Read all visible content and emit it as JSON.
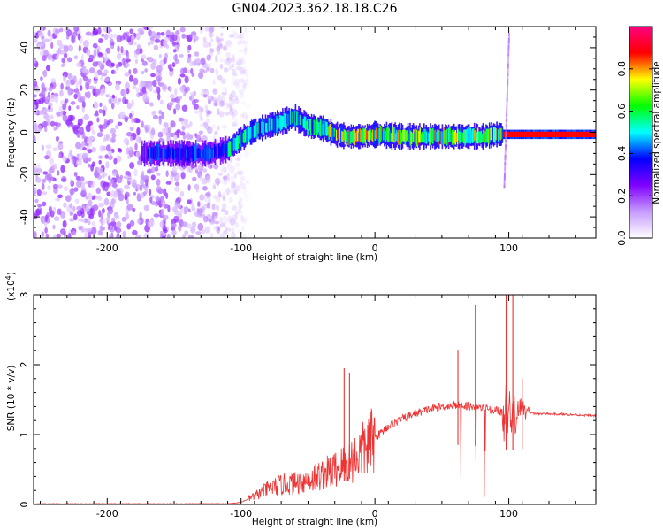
{
  "title": "GN04.2023.362.18.18.C26",
  "chart_data": [
    {
      "type": "heatmap",
      "xlabel": "Height of straight line (km)",
      "ylabel": "Frequency (Hz)",
      "xlim": [
        -255,
        165
      ],
      "ylim": [
        -50,
        50
      ],
      "x_ticks": [
        -200,
        -100,
        0,
        100
      ],
      "y_ticks": [
        -40,
        -20,
        0,
        20,
        40
      ],
      "colorbar": {
        "label": "Normalized spectral amplitude",
        "range": [
          0,
          1
        ],
        "ticks": [
          "0.0",
          "0.2",
          "0.4",
          "0.6",
          "0.8"
        ],
        "colors": [
          "#ffffff",
          "#c79bff",
          "#7f00ff",
          "#0000ff",
          "#00ffff",
          "#00ff00",
          "#ffff00",
          "#ff0000",
          "#ff0080"
        ]
      },
      "ridge": {
        "description_points_x": [
          -125,
          -110,
          -100,
          -90,
          -80,
          -70,
          -60,
          -50,
          -40,
          -30,
          -20,
          -10,
          0,
          20,
          40,
          60,
          80,
          90,
          95,
          165
        ],
        "description_points_y": [
          -10,
          -8,
          -3,
          1,
          3,
          5,
          7,
          3,
          2,
          -1,
          -2,
          -2,
          -1,
          -2,
          -2,
          -2,
          -2,
          -1,
          -1,
          -1
        ]
      },
      "noise_region_x": [
        -255,
        -110
      ]
    },
    {
      "type": "line",
      "xlabel": "Height of straight line (km)",
      "ylabel": "SNR (10 * v/v)",
      "scale_note": "(x10",
      "scale_exp": "4",
      "scale_close": ")",
      "xlim": [
        -255,
        165
      ],
      "ylim": [
        0,
        3
      ],
      "x_ticks": [
        -200,
        -100,
        0,
        100
      ],
      "y_ticks": [
        0,
        1,
        2,
        3
      ],
      "line_color": "#ee3333",
      "envelope": {
        "x": [
          -255,
          -110,
          -100,
          -90,
          -80,
          -70,
          -60,
          -50,
          -40,
          -30,
          -20,
          -10,
          0,
          10,
          20,
          30,
          40,
          50,
          60,
          70,
          80,
          90,
          100,
          110,
          120,
          140,
          165
        ],
        "y": [
          0.01,
          0.01,
          0.03,
          0.12,
          0.22,
          0.28,
          0.3,
          0.35,
          0.42,
          0.5,
          0.6,
          0.75,
          0.95,
          1.12,
          1.22,
          1.3,
          1.36,
          1.4,
          1.42,
          1.41,
          1.38,
          1.35,
          1.3,
          1.32,
          1.3,
          1.29,
          1.27
        ]
      },
      "spikes": [
        {
          "x": -23,
          "y": 1.95
        },
        {
          "x": -19,
          "y": 1.88
        },
        {
          "x": 62,
          "y": 2.2
        },
        {
          "x": 75,
          "y": 2.85
        },
        {
          "x": 98,
          "y": 3.0
        },
        {
          "x": 103,
          "y": 3.0
        },
        {
          "x": 110,
          "y": 1.8
        }
      ]
    }
  ]
}
